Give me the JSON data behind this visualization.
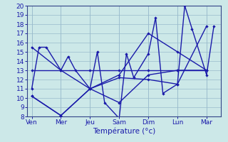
{
  "x_labels": [
    "Ven",
    "Mer",
    "Jeu",
    "Sam",
    "Dim",
    "Lun",
    "Mar"
  ],
  "x_ticks": [
    0,
    1,
    2,
    3,
    4,
    5,
    6
  ],
  "lines": [
    {
      "x": [
        0,
        0.25,
        0.5,
        1,
        1.25,
        1.5,
        2,
        2.25,
        2.5,
        3,
        3.25,
        3.5,
        4,
        4.25,
        4.5,
        5,
        5.25,
        5.5,
        6,
        6.25
      ],
      "y": [
        11,
        15.5,
        15.5,
        13,
        14.5,
        13,
        11,
        15,
        9.5,
        7.8,
        14.8,
        12.2,
        14.8,
        18.7,
        10.5,
        11.5,
        20,
        17.5,
        12.5,
        17.8
      ]
    },
    {
      "x": [
        0,
        1,
        2,
        3,
        4,
        5,
        6
      ],
      "y": [
        10.2,
        8.1,
        11,
        9.5,
        12.5,
        13.0,
        13.0
      ]
    },
    {
      "x": [
        0,
        1,
        2,
        3,
        4,
        5,
        6
      ],
      "y": [
        13,
        13,
        13,
        13,
        13,
        13,
        13
      ]
    },
    {
      "x": [
        0,
        1,
        2,
        3,
        4,
        5,
        6
      ],
      "y": [
        15.5,
        13,
        11,
        12.2,
        12.0,
        11.5,
        17.8
      ]
    },
    {
      "x": [
        0,
        1,
        2,
        3,
        4,
        5,
        6
      ],
      "y": [
        10.2,
        8.1,
        11,
        12.5,
        17.0,
        15.0,
        13.0
      ]
    }
  ],
  "xlabel": "Température (°c)",
  "ylim": [
    8,
    20
  ],
  "yticks": [
    8,
    9,
    10,
    11,
    12,
    13,
    14,
    15,
    16,
    17,
    18,
    19,
    20
  ],
  "bg_color": "#cce8e8",
  "grid_color": "#99bbcc",
  "line_color": "#1a1aaa",
  "tick_label_color": "#1a1aaa",
  "xlabel_color": "#1a1aaa",
  "spine_color": "#334488",
  "figsize": [
    3.2,
    2.0
  ],
  "dpi": 100
}
